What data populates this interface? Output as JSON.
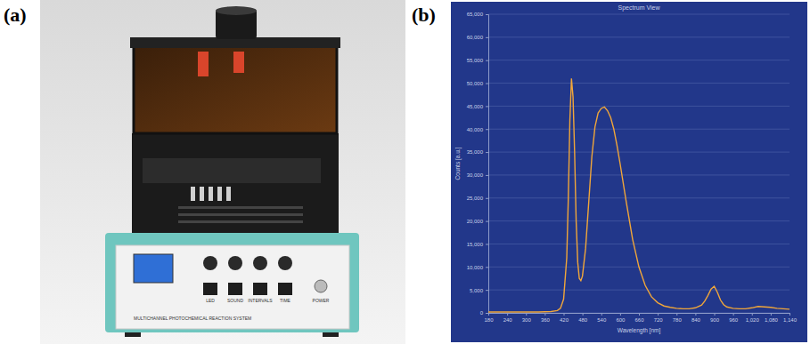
{
  "chart_data": {
    "type": "line",
    "title": "Spectrum View",
    "x_label": "Wavelength [nm]",
    "y_label": "Counts [a.u.]",
    "x": [
      180,
      220,
      260,
      300,
      340,
      380,
      400,
      410,
      420,
      430,
      435,
      440,
      445,
      450,
      455,
      460,
      465,
      470,
      475,
      480,
      490,
      500,
      510,
      520,
      530,
      540,
      550,
      560,
      570,
      580,
      590,
      600,
      620,
      640,
      660,
      680,
      700,
      720,
      740,
      760,
      780,
      800,
      820,
      840,
      860,
      870,
      880,
      890,
      900,
      910,
      920,
      930,
      940,
      960,
      980,
      1000,
      1020,
      1040,
      1060,
      1080,
      1100,
      1120,
      1140
    ],
    "values": [
      200,
      200,
      200,
      200,
      200,
      300,
      500,
      1000,
      3000,
      12000,
      25000,
      42000,
      51000,
      47000,
      35000,
      20000,
      11000,
      7500,
      7000,
      8000,
      14000,
      24000,
      34000,
      40500,
      43500,
      44500,
      44800,
      44000,
      42500,
      40000,
      36500,
      32500,
      24000,
      16000,
      10000,
      6000,
      3500,
      2200,
      1500,
      1200,
      1000,
      900,
      900,
      1100,
      1700,
      2600,
      3800,
      5200,
      5800,
      4500,
      2800,
      1800,
      1300,
      1000,
      900,
      900,
      1100,
      1400,
      1300,
      1200,
      1000,
      900,
      800
    ],
    "color": "#f0a63a",
    "xlim": [
      180,
      1140
    ],
    "xticks": [
      180,
      240,
      300,
      360,
      420,
      480,
      540,
      600,
      660,
      720,
      780,
      840,
      900,
      960,
      {
        "value": 1020,
        "label": "1,020"
      },
      {
        "value": 1080,
        "label": "1,080"
      },
      {
        "value": 1140,
        "label": "1,140"
      }
    ],
    "ylim": [
      0,
      65000
    ],
    "yticks": [
      0,
      {
        "value": 5000,
        "label": "5,000"
      },
      {
        "value": 10000,
        "label": "10,000"
      },
      {
        "value": 15000,
        "label": "15,000"
      },
      {
        "value": 20000,
        "label": "20,000"
      },
      {
        "value": 25000,
        "label": "25,000"
      },
      {
        "value": 30000,
        "label": "30,000"
      },
      {
        "value": 35000,
        "label": "35,000"
      },
      {
        "value": 40000,
        "label": "40,000"
      },
      {
        "value": 45000,
        "label": "45,000"
      },
      {
        "value": 50000,
        "label": "50,000"
      },
      {
        "value": 55000,
        "label": "55,000"
      },
      {
        "value": 60000,
        "label": "60,000"
      },
      {
        "value": 65000,
        "label": "65,000"
      }
    ],
    "grid": true
  },
  "figure": {
    "panel_labels": [
      "(a)",
      "(b)"
    ],
    "device_label": "MULTICHANNEL PHOTOCHEMICAL REACTION SYSTEM",
    "button_labels": [
      "LED",
      "SOUND",
      "INTERVALS",
      "TIME"
    ],
    "power_label": "POWER"
  }
}
